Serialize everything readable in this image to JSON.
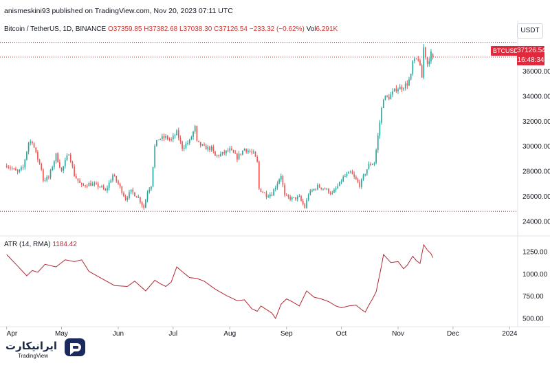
{
  "header": {
    "publish_line": "anismeskini93 published on TradingView.com, Nov 20, 2023 07:11 UTC"
  },
  "legend": {
    "symbol": "Bitcoin / TetherUS, 1D, BINANCE",
    "open": "O37359.85",
    "high": "H37382.68",
    "low": "L37038.30",
    "close": "C37126.54",
    "change": "−233.32 (−0.62%)",
    "vol_label": "Vol",
    "vol_value": "6.291K"
  },
  "price_axis": {
    "currency_button": "USDT",
    "symbol_tag": "BTCUSDT",
    "last_price": "37126.54",
    "countdown": "16:48:34"
  },
  "atr_legend": {
    "label": "ATR (14, RMA)",
    "value": "1184.42"
  },
  "time_axis": {
    "labels": [
      "Apr",
      "May",
      "Jun",
      "Jul",
      "Aug",
      "Sep",
      "Oct",
      "Nov",
      "Dec",
      "2024"
    ]
  },
  "brand": {
    "persian_name": "ایرانیکارت",
    "tv_label": "TradingView"
  },
  "colors": {
    "up": "#26a69a",
    "down": "#ef5350",
    "atr_line": "#b22833",
    "last_price": "#e0293d",
    "support_line": "#c2185b"
  },
  "chart_data": [
    {
      "type": "candlestick",
      "title": "Bitcoin / TetherUS, 1D, BINANCE",
      "x_range": [
        "2023-03-31",
        "2024-01-05"
      ],
      "ylim": [
        23000,
        38500
      ],
      "y_ticks": [
        24000,
        26000,
        28000,
        30000,
        32000,
        34000,
        36000
      ],
      "y_tick_labels": [
        "24000.00",
        "26000.00",
        "28000.00",
        "30000.00",
        "32000.00",
        "34000.00",
        "36000.00"
      ],
      "horizontal_lines": [
        {
          "value": 37126.54,
          "label": "last price"
        },
        {
          "value": 24800,
          "label": ""
        },
        {
          "value": 38300,
          "label": ""
        }
      ],
      "daily_close_anchors": [
        {
          "date": "2023-04-01",
          "close": 28500
        },
        {
          "date": "2023-04-04",
          "close": 28200
        },
        {
          "date": "2023-04-07",
          "close": 27900
        },
        {
          "date": "2023-04-10",
          "close": 28300
        },
        {
          "date": "2023-04-13",
          "close": 30300
        },
        {
          "date": "2023-04-15",
          "close": 30400
        },
        {
          "date": "2023-04-17",
          "close": 29400
        },
        {
          "date": "2023-04-20",
          "close": 28200
        },
        {
          "date": "2023-04-21",
          "close": 27300
        },
        {
          "date": "2023-04-24",
          "close": 27500
        },
        {
          "date": "2023-04-26",
          "close": 28400
        },
        {
          "date": "2023-04-28",
          "close": 29300
        },
        {
          "date": "2023-05-01",
          "close": 28000
        },
        {
          "date": "2023-05-05",
          "close": 29500
        },
        {
          "date": "2023-05-08",
          "close": 27700
        },
        {
          "date": "2023-05-12",
          "close": 26800
        },
        {
          "date": "2023-05-16",
          "close": 27000
        },
        {
          "date": "2023-05-22",
          "close": 26800
        },
        {
          "date": "2023-05-25",
          "close": 26400
        },
        {
          "date": "2023-05-29",
          "close": 27700
        },
        {
          "date": "2023-06-01",
          "close": 27000
        },
        {
          "date": "2023-06-05",
          "close": 25800
        },
        {
          "date": "2023-06-08",
          "close": 26400
        },
        {
          "date": "2023-06-12",
          "close": 25900
        },
        {
          "date": "2023-06-15",
          "close": 25100
        },
        {
          "date": "2023-06-17",
          "close": 26400
        },
        {
          "date": "2023-06-19",
          "close": 26900
        },
        {
          "date": "2023-06-21",
          "close": 30000
        },
        {
          "date": "2023-06-23",
          "close": 30600
        },
        {
          "date": "2023-06-27",
          "close": 30700
        },
        {
          "date": "2023-06-30",
          "close": 30500
        },
        {
          "date": "2023-07-03",
          "close": 31100
        },
        {
          "date": "2023-07-06",
          "close": 29900
        },
        {
          "date": "2023-07-10",
          "close": 30400
        },
        {
          "date": "2023-07-13",
          "close": 31500
        },
        {
          "date": "2023-07-14",
          "close": 30300
        },
        {
          "date": "2023-07-18",
          "close": 29900
        },
        {
          "date": "2023-07-22",
          "close": 29800
        },
        {
          "date": "2023-07-24",
          "close": 29200
        },
        {
          "date": "2023-07-28",
          "close": 29400
        },
        {
          "date": "2023-08-01",
          "close": 29700
        },
        {
          "date": "2023-08-05",
          "close": 29100
        },
        {
          "date": "2023-08-09",
          "close": 29800
        },
        {
          "date": "2023-08-14",
          "close": 29400
        },
        {
          "date": "2023-08-16",
          "close": 28700
        },
        {
          "date": "2023-08-17",
          "close": 26600
        },
        {
          "date": "2023-08-21",
          "close": 26100
        },
        {
          "date": "2023-08-24",
          "close": 26200
        },
        {
          "date": "2023-08-29",
          "close": 27700
        },
        {
          "date": "2023-08-31",
          "close": 26000
        },
        {
          "date": "2023-09-04",
          "close": 25800
        },
        {
          "date": "2023-09-08",
          "close": 25900
        },
        {
          "date": "2023-09-11",
          "close": 25100
        },
        {
          "date": "2023-09-13",
          "close": 26200
        },
        {
          "date": "2023-09-18",
          "close": 26800
        },
        {
          "date": "2023-09-22",
          "close": 26600
        },
        {
          "date": "2023-09-26",
          "close": 26200
        },
        {
          "date": "2023-09-30",
          "close": 27000
        },
        {
          "date": "2023-10-02",
          "close": 27500
        },
        {
          "date": "2023-10-06",
          "close": 27900
        },
        {
          "date": "2023-10-11",
          "close": 26900
        },
        {
          "date": "2023-10-16",
          "close": 28500
        },
        {
          "date": "2023-10-19",
          "close": 28700
        },
        {
          "date": "2023-10-20",
          "close": 29700
        },
        {
          "date": "2023-10-23",
          "close": 33000
        },
        {
          "date": "2023-10-24",
          "close": 33900
        },
        {
          "date": "2023-10-27",
          "close": 33900
        },
        {
          "date": "2023-10-31",
          "close": 34600
        },
        {
          "date": "2023-11-03",
          "close": 34700
        },
        {
          "date": "2023-11-06",
          "close": 35000
        },
        {
          "date": "2023-11-08",
          "close": 35600
        },
        {
          "date": "2023-11-09",
          "close": 36700
        },
        {
          "date": "2023-11-12",
          "close": 37000
        },
        {
          "date": "2023-11-14",
          "close": 35500
        },
        {
          "date": "2023-11-15",
          "close": 37900
        },
        {
          "date": "2023-11-17",
          "close": 36600
        },
        {
          "date": "2023-11-19",
          "close": 37400
        },
        {
          "date": "2023-11-20",
          "close": 37126.54
        }
      ]
    },
    {
      "type": "line",
      "title": "ATR (14, RMA)",
      "ylim": [
        430,
        1360
      ],
      "y_ticks": [
        500,
        750,
        1000,
        1250
      ],
      "y_tick_labels": [
        "500.00",
        "750.00",
        "1000.00",
        "1250.00"
      ],
      "series": [
        {
          "name": "ATR (14, RMA)",
          "points": [
            {
              "date": "2023-04-01",
              "value": 1220
            },
            {
              "date": "2023-04-07",
              "value": 1090
            },
            {
              "date": "2023-04-12",
              "value": 980
            },
            {
              "date": "2023-04-15",
              "value": 1040
            },
            {
              "date": "2023-04-18",
              "value": 1020
            },
            {
              "date": "2023-04-22",
              "value": 1110
            },
            {
              "date": "2023-04-28",
              "value": 1080
            },
            {
              "date": "2023-05-03",
              "value": 1160
            },
            {
              "date": "2023-05-08",
              "value": 1140
            },
            {
              "date": "2023-05-12",
              "value": 1160
            },
            {
              "date": "2023-05-16",
              "value": 1030
            },
            {
              "date": "2023-05-22",
              "value": 960
            },
            {
              "date": "2023-05-30",
              "value": 870
            },
            {
              "date": "2023-06-06",
              "value": 860
            },
            {
              "date": "2023-06-10",
              "value": 920
            },
            {
              "date": "2023-06-16",
              "value": 810
            },
            {
              "date": "2023-06-21",
              "value": 930
            },
            {
              "date": "2023-06-24",
              "value": 890
            },
            {
              "date": "2023-06-27",
              "value": 860
            },
            {
              "date": "2023-06-30",
              "value": 910
            },
            {
              "date": "2023-07-03",
              "value": 1080
            },
            {
              "date": "2023-07-07",
              "value": 1010
            },
            {
              "date": "2023-07-10",
              "value": 960
            },
            {
              "date": "2023-07-14",
              "value": 950
            },
            {
              "date": "2023-07-18",
              "value": 920
            },
            {
              "date": "2023-07-24",
              "value": 830
            },
            {
              "date": "2023-07-30",
              "value": 760
            },
            {
              "date": "2023-08-05",
              "value": 700
            },
            {
              "date": "2023-08-09",
              "value": 710
            },
            {
              "date": "2023-08-13",
              "value": 610
            },
            {
              "date": "2023-08-16",
              "value": 580
            },
            {
              "date": "2023-08-18",
              "value": 640
            },
            {
              "date": "2023-08-21",
              "value": 600
            },
            {
              "date": "2023-08-24",
              "value": 560
            },
            {
              "date": "2023-08-26",
              "value": 500
            },
            {
              "date": "2023-08-29",
              "value": 660
            },
            {
              "date": "2023-09-01",
              "value": 720
            },
            {
              "date": "2023-09-04",
              "value": 690
            },
            {
              "date": "2023-09-08",
              "value": 640
            },
            {
              "date": "2023-09-12",
              "value": 810
            },
            {
              "date": "2023-09-16",
              "value": 740
            },
            {
              "date": "2023-09-20",
              "value": 720
            },
            {
              "date": "2023-09-24",
              "value": 690
            },
            {
              "date": "2023-09-28",
              "value": 640
            },
            {
              "date": "2023-10-01",
              "value": 620
            },
            {
              "date": "2023-10-05",
              "value": 640
            },
            {
              "date": "2023-10-09",
              "value": 650
            },
            {
              "date": "2023-10-12",
              "value": 600
            },
            {
              "date": "2023-10-14",
              "value": 570
            },
            {
              "date": "2023-10-16",
              "value": 650
            },
            {
              "date": "2023-10-18",
              "value": 720
            },
            {
              "date": "2023-10-20",
              "value": 800
            },
            {
              "date": "2023-10-23",
              "value": 1100
            },
            {
              "date": "2023-10-24",
              "value": 1220
            },
            {
              "date": "2023-10-28",
              "value": 1130
            },
            {
              "date": "2023-11-01",
              "value": 1140
            },
            {
              "date": "2023-11-04",
              "value": 1060
            },
            {
              "date": "2023-11-06",
              "value": 1100
            },
            {
              "date": "2023-11-09",
              "value": 1200
            },
            {
              "date": "2023-11-11",
              "value": 1150
            },
            {
              "date": "2023-11-13",
              "value": 1120
            },
            {
              "date": "2023-11-15",
              "value": 1330
            },
            {
              "date": "2023-11-17",
              "value": 1270
            },
            {
              "date": "2023-11-19",
              "value": 1230
            },
            {
              "date": "2023-11-20",
              "value": 1184.42
            }
          ]
        }
      ]
    }
  ]
}
